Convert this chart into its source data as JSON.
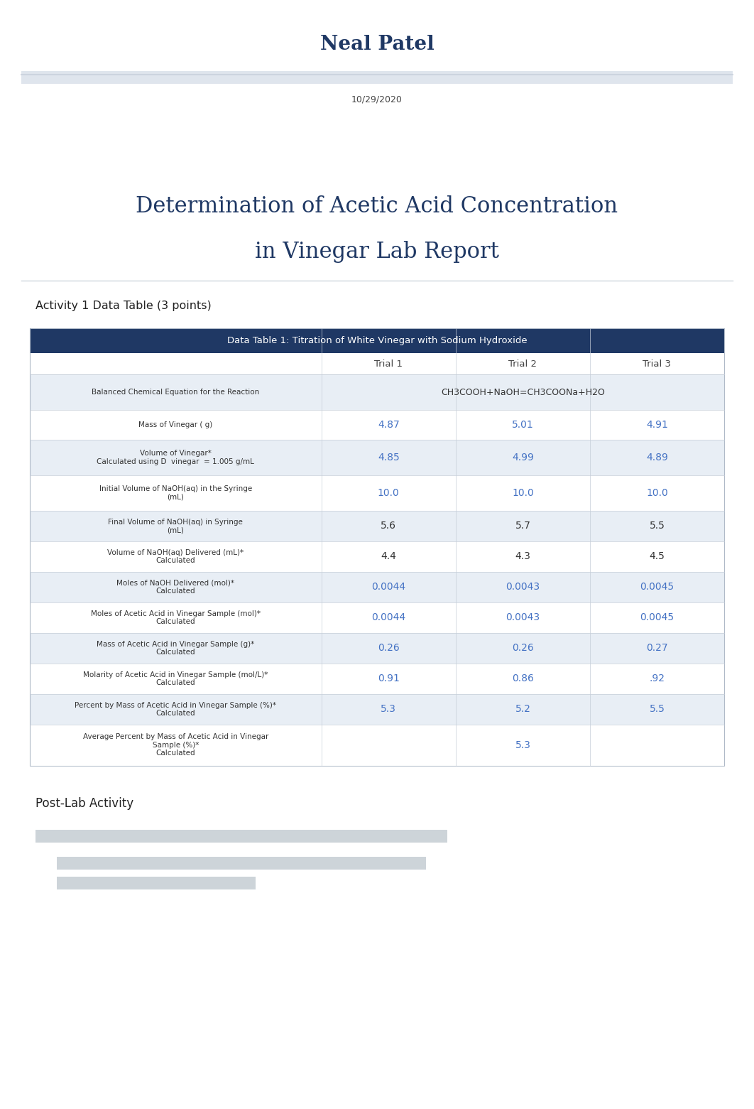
{
  "title_name": "Neal Patel",
  "date": "10/29/2020",
  "main_title_line1": "Determination of Acetic Acid Concentration",
  "main_title_line2": "in Vinegar Lab Report",
  "activity_label": "Activity 1 Data Table (3 points)",
  "table_header": "Data Table 1: Titration of White Vinegar with Sodium Hydroxide",
  "rows": [
    {
      "label": "Balanced Chemical Equation for the Reaction",
      "values": [
        "CH3COOH+NaOH=CH3COONa+H2O",
        "",
        ""
      ],
      "span": true,
      "value_color": "#333333"
    },
    {
      "label": "Mass of Vinegar ( g)",
      "values": [
        "4.87",
        "5.01",
        "4.91"
      ],
      "span": false,
      "value_color": "#4472c4"
    },
    {
      "label": "Volume of Vinegar*\nCalculated using D  vinegar  = 1.005 g/mL",
      "values": [
        "4.85",
        "4.99",
        "4.89"
      ],
      "span": false,
      "value_color": "#4472c4"
    },
    {
      "label": "Initial Volume of NaOH(aq) in the Syringe\n(mL)",
      "values": [
        "10.0",
        "10.0",
        "10.0"
      ],
      "span": false,
      "value_color": "#4472c4"
    },
    {
      "label": "Final Volume of NaOH(aq) in Syringe\n(mL)",
      "values": [
        "5.6",
        "5.7",
        "5.5"
      ],
      "span": false,
      "value_color": "#333333"
    },
    {
      "label": "Volume of NaOH(aq) Delivered (mL)*\nCalculated",
      "values": [
        "4.4",
        "4.3",
        "4.5"
      ],
      "span": false,
      "value_color": "#333333"
    },
    {
      "label": "Moles of NaOH Delivered (mol)*\nCalculated",
      "values": [
        "0.0044",
        "0.0043",
        "0.0045"
      ],
      "span": false,
      "value_color": "#4472c4"
    },
    {
      "label": "Moles of Acetic Acid in Vinegar Sample (mol)*\nCalculated",
      "values": [
        "0.0044",
        "0.0043",
        "0.0045"
      ],
      "span": false,
      "value_color": "#4472c4"
    },
    {
      "label": "Mass of Acetic Acid in Vinegar Sample (g)*\nCalculated",
      "values": [
        "0.26",
        "0.26",
        "0.27"
      ],
      "span": false,
      "value_color": "#4472c4"
    },
    {
      "label": "Molarity of Acetic Acid in Vinegar Sample (mol/L)*\nCalculated",
      "values": [
        "0.91",
        "0.86",
        ".92"
      ],
      "span": false,
      "value_color": "#4472c4"
    },
    {
      "label": "Percent by Mass of Acetic Acid in Vinegar Sample (%)*\nCalculated",
      "values": [
        "5.3",
        "5.2",
        "5.5"
      ],
      "span": false,
      "value_color": "#4472c4"
    },
    {
      "label": "Average Percent by Mass of Acetic Acid in Vinegar\nSample (%)*\nCalculated",
      "values": [
        "",
        "5.3",
        ""
      ],
      "span": false,
      "value_color": "#4472c4"
    }
  ],
  "post_lab_label": "Post-Lab Activity",
  "bg_color": "#ffffff",
  "header_bg": "#1f3864",
  "header_text_color": "#ffffff",
  "alt_row_color": "#e8eef5",
  "normal_row_color": "#ffffff",
  "divider_color": "#c5cdd8",
  "name_color": "#1f3864",
  "main_title_color": "#1f3864",
  "col_header_color": "#444444",
  "border_color": "#b0bac8",
  "separator_color": "#d0d8e4"
}
